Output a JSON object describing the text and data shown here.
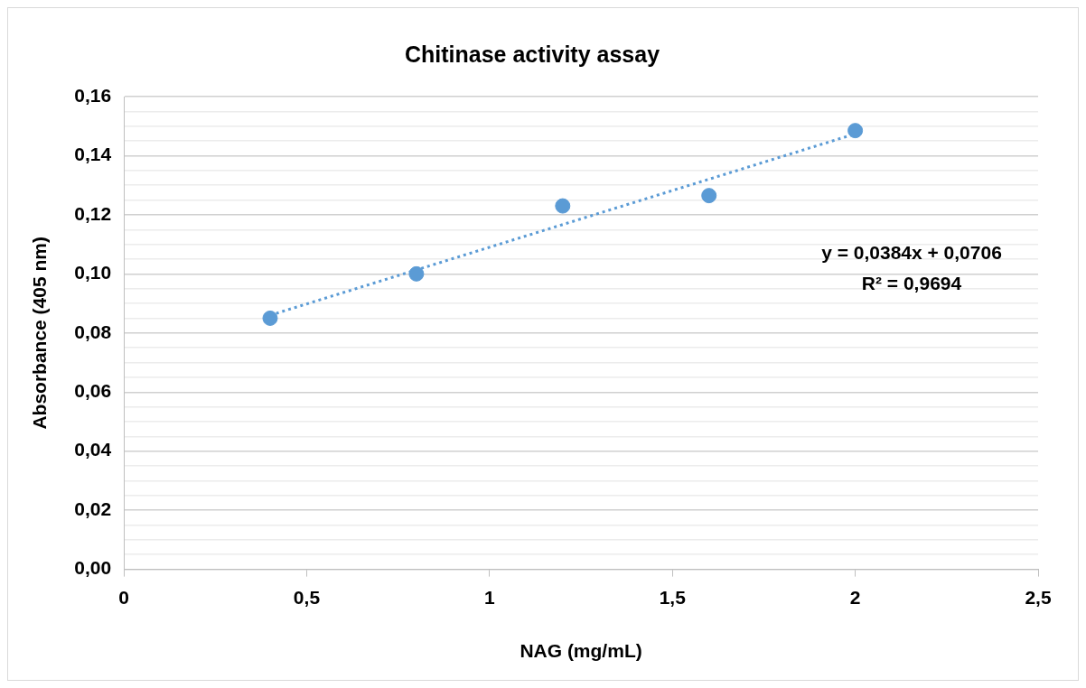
{
  "chart_data": {
    "type": "scatter",
    "title": "Chitinase activity assay",
    "xlabel": "NAG (mg/mL)",
    "ylabel": "Absorbance (405 nm)",
    "series": [
      {
        "type": "scatter",
        "color": "#5b9bd5",
        "x": [
          0.4,
          0.8,
          1.2,
          1.6,
          2.0
        ],
        "values": [
          0.085,
          0.1,
          0.123,
          0.1265,
          0.1485
        ],
        "marker": "circle"
      },
      {
        "type": "line",
        "color": "#5b9bd5",
        "x": [
          0.4,
          2.0
        ],
        "values": [
          0.086,
          0.1474
        ],
        "marker": "none",
        "line_style": "dotted"
      }
    ],
    "xlim": [
      0,
      2.5
    ],
    "xticks": [
      {
        "value": 0,
        "label": "0"
      },
      {
        "value": 0.5,
        "label": "0,5"
      },
      {
        "value": 1,
        "label": "1"
      },
      {
        "value": 1.5,
        "label": "1,5"
      },
      {
        "value": 2,
        "label": "2"
      },
      {
        "value": 2.5,
        "label": "2,5"
      }
    ],
    "ylim": [
      0,
      0.16
    ],
    "yticks": [
      {
        "value": 0,
        "label": "0,00"
      },
      {
        "value": 0.005,
        "label": null
      },
      {
        "value": 0.01,
        "label": null
      },
      {
        "value": 0.015,
        "label": null
      },
      {
        "value": 0.02,
        "label": "0,02"
      },
      {
        "value": 0.025,
        "label": null
      },
      {
        "value": 0.03,
        "label": null
      },
      {
        "value": 0.035,
        "label": null
      },
      {
        "value": 0.04,
        "label": "0,04"
      },
      {
        "value": 0.045,
        "label": null
      },
      {
        "value": 0.05,
        "label": null
      },
      {
        "value": 0.055,
        "label": null
      },
      {
        "value": 0.06,
        "label": "0,06"
      },
      {
        "value": 0.065,
        "label": null
      },
      {
        "value": 0.07,
        "label": null
      },
      {
        "value": 0.075,
        "label": null
      },
      {
        "value": 0.08,
        "label": "0,08"
      },
      {
        "value": 0.085,
        "label": null
      },
      {
        "value": 0.09,
        "label": null
      },
      {
        "value": 0.095,
        "label": null
      },
      {
        "value": 0.1,
        "label": "0,10"
      },
      {
        "value": 0.105,
        "label": null
      },
      {
        "value": 0.11,
        "label": null
      },
      {
        "value": 0.115,
        "label": null
      },
      {
        "value": 0.12,
        "label": "0,12"
      },
      {
        "value": 0.125,
        "label": null
      },
      {
        "value": 0.13,
        "label": null
      },
      {
        "value": 0.135,
        "label": null
      },
      {
        "value": 0.14,
        "label": "0,14"
      },
      {
        "value": 0.145,
        "label": null
      },
      {
        "value": 0.15,
        "label": null
      },
      {
        "value": 0.155,
        "label": null
      },
      {
        "value": 0.16,
        "label": "0,16"
      }
    ],
    "grid": "y",
    "legend": false,
    "annotations": [
      "y = 0,0384x + 0,0706",
      "R² = 0,9694"
    ]
  }
}
